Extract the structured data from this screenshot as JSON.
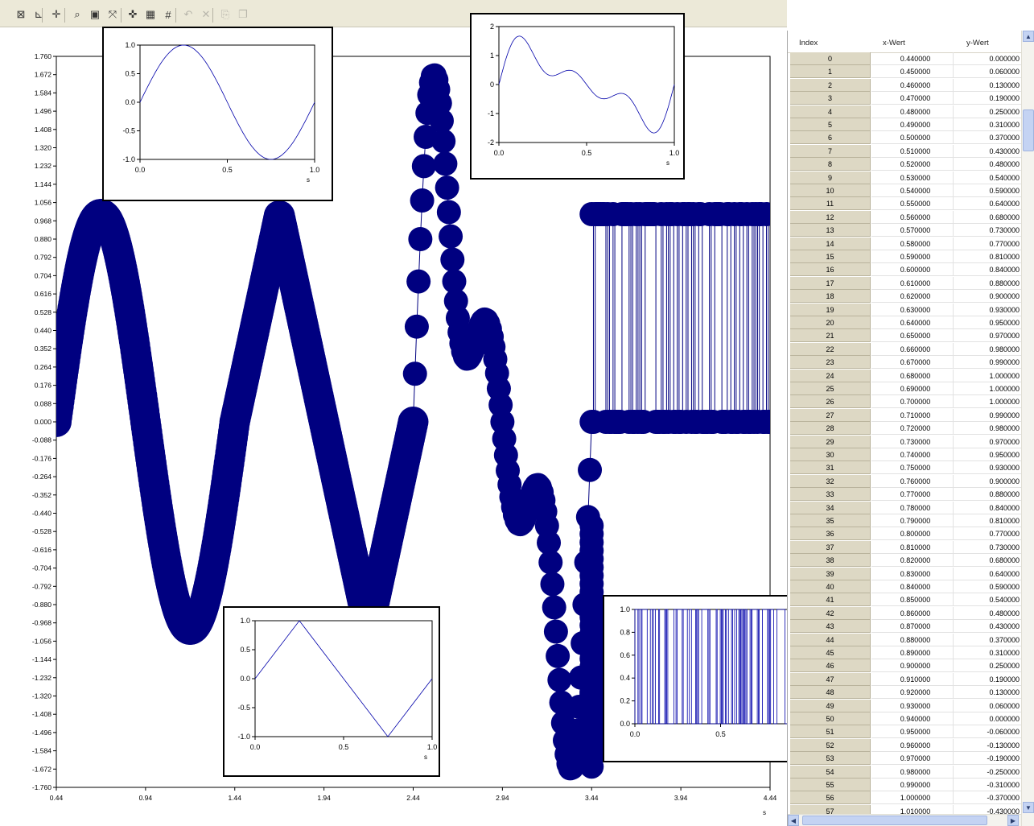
{
  "toolbar": {
    "buttons": [
      {
        "icon": "chart-properties-icon",
        "glyph": "⊠",
        "enabled": true
      },
      {
        "icon": "axis-icon",
        "glyph": "⊾",
        "enabled": true
      },
      {
        "icon": "cursor-icon",
        "glyph": "✛",
        "enabled": true
      },
      {
        "icon": "zoom-icon",
        "glyph": "⌕",
        "enabled": true
      },
      {
        "icon": "zoom-window-icon",
        "glyph": "▣",
        "enabled": true
      },
      {
        "icon": "fit-to-window-icon",
        "glyph": "⤧",
        "enabled": true
      },
      {
        "icon": "marker-icon",
        "glyph": "✜",
        "enabled": true
      },
      {
        "icon": "grid-icon",
        "glyph": "▦",
        "enabled": true
      },
      {
        "icon": "grid-lines-icon",
        "glyph": "#",
        "enabled": true
      },
      {
        "icon": "undo-icon",
        "glyph": "↶",
        "enabled": false
      },
      {
        "icon": "delete-icon",
        "glyph": "✕",
        "enabled": false
      },
      {
        "icon": "paste-icon",
        "glyph": "⎘",
        "enabled": false
      },
      {
        "icon": "copy-icon",
        "glyph": "❐",
        "enabled": false
      }
    ]
  },
  "main_chart": {
    "type": "scatter",
    "x_ticks": [
      "0.44",
      "0.94",
      "1.44",
      "1.94",
      "2.44",
      "2.94",
      "3.44",
      "3.94",
      "4.44"
    ],
    "y_ticks": [
      "1.760",
      "1.672",
      "1.584",
      "1.496",
      "1.408",
      "1.320",
      "1.232",
      "1.144",
      "1.056",
      "0.968",
      "0.880",
      "0.792",
      "0.704",
      "0.616",
      "0.528",
      "0.440",
      "0.352",
      "0.264",
      "0.176",
      "0.088",
      "0.000",
      "-0.088",
      "-0.176",
      "-0.264",
      "-0.352",
      "-0.440",
      "-0.528",
      "-0.616",
      "-0.704",
      "-0.792",
      "-0.880",
      "-0.968",
      "-1.056",
      "-1.144",
      "-1.232",
      "-1.320",
      "-1.408",
      "-1.496",
      "-1.584",
      "-1.672",
      "-1.760"
    ],
    "xlim": [
      0.44,
      4.44
    ],
    "ylim": [
      -1.76,
      1.76
    ],
    "x_unit": "s",
    "color": "#000080"
  },
  "chart_data": [
    {
      "type": "line",
      "name_hint": "sine",
      "x": [
        0.0,
        0.1,
        0.2,
        0.25,
        0.3,
        0.4,
        0.5,
        0.6,
        0.7,
        0.75,
        0.8,
        0.9,
        1.0
      ],
      "y": [
        0.0,
        0.588,
        0.951,
        1.0,
        0.951,
        0.588,
        0.0,
        -0.588,
        -0.951,
        -1.0,
        -0.951,
        -0.588,
        0.0
      ],
      "xlim": [
        0,
        1
      ],
      "ylim": [
        -1,
        1
      ],
      "x_ticks": [
        "0.0",
        "0.5",
        "1.0"
      ],
      "y_ticks": [
        "1.0",
        "0.5",
        "0.0",
        "-0.5",
        "-1.0"
      ],
      "xlabel": "s"
    },
    {
      "type": "line",
      "name_hint": "sum-of-sines",
      "x": [
        0.0,
        0.05,
        0.1,
        0.15,
        0.2,
        0.25,
        0.3,
        0.35,
        0.4,
        0.45,
        0.5,
        0.55,
        0.6,
        0.65,
        0.7,
        0.75,
        0.8,
        0.85,
        0.9,
        0.95,
        1.0
      ],
      "y": [
        0.0,
        0.9,
        1.45,
        1.68,
        1.55,
        1.07,
        0.48,
        0.0,
        -0.22,
        -0.22,
        -0.08,
        0.2,
        0.35,
        0.2,
        -0.25,
        -0.95,
        -1.55,
        -1.73,
        -1.45,
        -0.85,
        0.0
      ],
      "xlim": [
        0,
        1
      ],
      "ylim": [
        -2,
        2
      ],
      "x_ticks": [
        "0.0",
        "0.5",
        "1.0"
      ],
      "y_ticks": [
        "2",
        "1",
        "0",
        "-1",
        "-2"
      ],
      "xlabel": "s"
    },
    {
      "type": "line",
      "name_hint": "triangle",
      "x": [
        0.0,
        0.25,
        0.75,
        1.0
      ],
      "y": [
        0.0,
        1.0,
        -1.0,
        0.0
      ],
      "xlim": [
        0,
        1
      ],
      "ylim": [
        -1,
        1
      ],
      "x_ticks": [
        "0.0",
        "0.5",
        "1.0"
      ],
      "y_ticks": [
        "1.0",
        "0.5",
        "0.0",
        "-0.5",
        "-1.0"
      ],
      "xlabel": "s"
    },
    {
      "type": "line",
      "name_hint": "random-binary",
      "x_range": [
        0,
        1
      ],
      "levels": [
        0,
        1
      ],
      "xlim": [
        0,
        1
      ],
      "ylim": [
        0,
        1
      ],
      "x_ticks": [
        "0.0",
        "0.5",
        "1.0"
      ],
      "y_ticks": [
        "1.0",
        "0.8",
        "0.6",
        "0.4",
        "0.2",
        "0.0"
      ],
      "xlabel": "s"
    }
  ],
  "table": {
    "headers": {
      "index": "Index",
      "x": "x-Wert",
      "y": "y-Wert"
    },
    "rows": [
      [
        "0",
        "0.440000",
        "0.000000"
      ],
      [
        "1",
        "0.450000",
        "0.060000"
      ],
      [
        "2",
        "0.460000",
        "0.130000"
      ],
      [
        "3",
        "0.470000",
        "0.190000"
      ],
      [
        "4",
        "0.480000",
        "0.250000"
      ],
      [
        "5",
        "0.490000",
        "0.310000"
      ],
      [
        "6",
        "0.500000",
        "0.370000"
      ],
      [
        "7",
        "0.510000",
        "0.430000"
      ],
      [
        "8",
        "0.520000",
        "0.480000"
      ],
      [
        "9",
        "0.530000",
        "0.540000"
      ],
      [
        "10",
        "0.540000",
        "0.590000"
      ],
      [
        "11",
        "0.550000",
        "0.640000"
      ],
      [
        "12",
        "0.560000",
        "0.680000"
      ],
      [
        "13",
        "0.570000",
        "0.730000"
      ],
      [
        "14",
        "0.580000",
        "0.770000"
      ],
      [
        "15",
        "0.590000",
        "0.810000"
      ],
      [
        "16",
        "0.600000",
        "0.840000"
      ],
      [
        "17",
        "0.610000",
        "0.880000"
      ],
      [
        "18",
        "0.620000",
        "0.900000"
      ],
      [
        "19",
        "0.630000",
        "0.930000"
      ],
      [
        "20",
        "0.640000",
        "0.950000"
      ],
      [
        "21",
        "0.650000",
        "0.970000"
      ],
      [
        "22",
        "0.660000",
        "0.980000"
      ],
      [
        "23",
        "0.670000",
        "0.990000"
      ],
      [
        "24",
        "0.680000",
        "1.000000"
      ],
      [
        "25",
        "0.690000",
        "1.000000"
      ],
      [
        "26",
        "0.700000",
        "1.000000"
      ],
      [
        "27",
        "0.710000",
        "0.990000"
      ],
      [
        "28",
        "0.720000",
        "0.980000"
      ],
      [
        "29",
        "0.730000",
        "0.970000"
      ],
      [
        "30",
        "0.740000",
        "0.950000"
      ],
      [
        "31",
        "0.750000",
        "0.930000"
      ],
      [
        "32",
        "0.760000",
        "0.900000"
      ],
      [
        "33",
        "0.770000",
        "0.880000"
      ],
      [
        "34",
        "0.780000",
        "0.840000"
      ],
      [
        "35",
        "0.790000",
        "0.810000"
      ],
      [
        "36",
        "0.800000",
        "0.770000"
      ],
      [
        "37",
        "0.810000",
        "0.730000"
      ],
      [
        "38",
        "0.820000",
        "0.680000"
      ],
      [
        "39",
        "0.830000",
        "0.640000"
      ],
      [
        "40",
        "0.840000",
        "0.590000"
      ],
      [
        "41",
        "0.850000",
        "0.540000"
      ],
      [
        "42",
        "0.860000",
        "0.480000"
      ],
      [
        "43",
        "0.870000",
        "0.430000"
      ],
      [
        "44",
        "0.880000",
        "0.370000"
      ],
      [
        "45",
        "0.890000",
        "0.310000"
      ],
      [
        "46",
        "0.900000",
        "0.250000"
      ],
      [
        "47",
        "0.910000",
        "0.190000"
      ],
      [
        "48",
        "0.920000",
        "0.130000"
      ],
      [
        "49",
        "0.930000",
        "0.060000"
      ],
      [
        "50",
        "0.940000",
        "0.000000"
      ],
      [
        "51",
        "0.950000",
        "-0.060000"
      ],
      [
        "52",
        "0.960000",
        "-0.130000"
      ],
      [
        "53",
        "0.970000",
        "-0.190000"
      ],
      [
        "54",
        "0.980000",
        "-0.250000"
      ],
      [
        "55",
        "0.990000",
        "-0.310000"
      ],
      [
        "56",
        "1.000000",
        "-0.370000"
      ],
      [
        "57",
        "1.010000",
        "-0.430000"
      ]
    ]
  }
}
